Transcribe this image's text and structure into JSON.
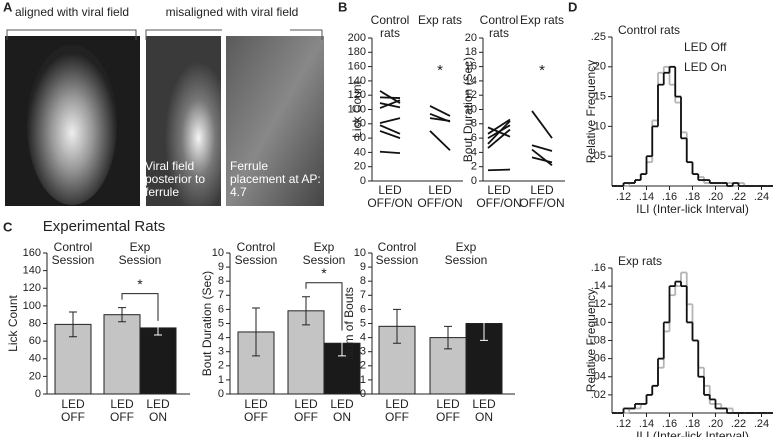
{
  "figure": {
    "panel_labels": [
      "A",
      "B",
      "C",
      "D"
    ],
    "panel_a": {
      "aligned_label": "aligned with viral field",
      "misaligned_label": "misaligned with viral field",
      "image_2_caption": "Viral field posterior to ferrule",
      "image_3_caption": "Ferrule placement at AP: 4.7"
    },
    "panel_c_title": "Experimental Rats"
  },
  "chart_data": [
    {
      "type": "paired",
      "ylabel": "Lick Count",
      "ylim": [
        0,
        200
      ],
      "yticks": [
        0,
        20,
        40,
        60,
        80,
        100,
        120,
        140,
        160,
        180,
        200
      ],
      "color": "#111111",
      "groups": [
        {
          "name": "Control rats",
          "x_label": "LED OFF/ON",
          "pairs": [
            [
              126,
              109
            ],
            [
              117,
              116
            ],
            [
              109,
              103
            ],
            [
              102,
              113
            ],
            [
              81,
              88
            ],
            [
              78,
              66
            ],
            [
              70,
              60
            ],
            [
              41,
              39
            ]
          ]
        },
        {
          "name": "Exp rats",
          "x_label": "LED OFF/ON",
          "annotation": "*",
          "pairs": [
            [
              105,
              91
            ],
            [
              94,
              83
            ],
            [
              88,
              84
            ],
            [
              70,
              43
            ]
          ]
        }
      ]
    },
    {
      "type": "paired",
      "ylabel": "Bout Duration (Sec)",
      "ylim": [
        0,
        20
      ],
      "yticks": [
        0,
        2,
        4,
        6,
        8,
        10,
        12,
        14,
        16,
        18,
        20
      ],
      "color": "#111111",
      "groups": [
        {
          "name": "Control rats",
          "x_label": "LED OFF/ON",
          "pairs": [
            [
              5.2,
              8.4
            ],
            [
              6.0,
              7.8
            ],
            [
              4.6,
              7.2
            ],
            [
              6.6,
              8.6
            ],
            [
              7.5,
              6.2
            ],
            [
              1.5,
              1.6
            ]
          ]
        },
        {
          "name": "Exp rats",
          "x_label": "LED OFF/ON",
          "annotation": "*",
          "pairs": [
            [
              9.8,
              6.0
            ],
            [
              5.0,
              4.2
            ],
            [
              4.4,
              2.2
            ],
            [
              3.3,
              2.6
            ]
          ]
        }
      ]
    },
    {
      "type": "bar",
      "ylabel": "Lick Count",
      "ylim": [
        0,
        160
      ],
      "yticks": [
        0,
        20,
        40,
        60,
        80,
        100,
        120,
        140,
        160
      ],
      "groups": [
        "Control Session",
        "Exp Session"
      ],
      "categories": [
        "LED OFF",
        "LED OFF",
        "LED ON"
      ],
      "values": [
        79,
        90,
        75
      ],
      "errors": [
        14,
        8,
        8
      ],
      "colors": [
        "#c4c4c4",
        "#c4c4c4",
        "#1a1a1a"
      ],
      "annotation": "*"
    },
    {
      "type": "bar",
      "ylabel": "Bout Duration (Sec)",
      "ylim": [
        0,
        10
      ],
      "yticks": [
        0,
        1,
        2,
        3,
        4,
        5,
        6,
        7,
        8,
        9,
        10
      ],
      "groups": [
        "Control Session",
        "Exp Session"
      ],
      "categories": [
        "LED OFF",
        "LED OFF",
        "LED ON"
      ],
      "values": [
        4.4,
        5.9,
        3.6
      ],
      "errors": [
        1.7,
        1.0,
        0.9
      ],
      "colors": [
        "#c4c4c4",
        "#c4c4c4",
        "#1a1a1a"
      ],
      "annotation": "*"
    },
    {
      "type": "bar",
      "ylabel": "Num of Bouts",
      "ylim": [
        0,
        10
      ],
      "yticks": [
        0,
        1,
        2,
        3,
        4,
        5,
        6,
        7,
        8,
        9,
        10
      ],
      "groups": [
        "Control Session",
        "Exp Session"
      ],
      "categories": [
        "LED OFF",
        "LED OFF",
        "LED ON"
      ],
      "values": [
        4.8,
        4.0,
        5.0
      ],
      "errors": [
        1.2,
        0.8,
        1.2
      ],
      "colors": [
        "#c4c4c4",
        "#c4c4c4",
        "#1a1a1a"
      ]
    },
    {
      "type": "histogram",
      "title": "Control rats",
      "xlabel": "ILI (Inter-lick Interval)",
      "ylabel": "Relative Frequency",
      "xlim": [
        0.11,
        0.25
      ],
      "xticks": [
        {
          "value": 0.12,
          "label": ".12"
        },
        {
          "value": 0.14,
          "label": ".14"
        },
        {
          "value": 0.16,
          "label": ".16"
        },
        {
          "value": 0.18,
          "label": ".18"
        },
        {
          "value": 0.2,
          "label": ".20"
        },
        {
          "value": 0.22,
          "label": ".22"
        },
        {
          "value": 0.24,
          "label": ".24"
        }
      ],
      "ylim": [
        0,
        0.25
      ],
      "yticks": [
        {
          "value": 0.05,
          "label": ".05"
        },
        {
          "value": 0.1,
          "label": ".10"
        },
        {
          "value": 0.15,
          "label": ".15"
        },
        {
          "value": 0.2,
          "label": ".20"
        },
        {
          "value": 0.25,
          "label": ".25"
        }
      ],
      "bins": [
        0.11,
        0.115,
        0.12,
        0.125,
        0.13,
        0.135,
        0.14,
        0.145,
        0.15,
        0.155,
        0.16,
        0.165,
        0.17,
        0.175,
        0.18,
        0.185,
        0.19,
        0.195,
        0.2,
        0.205,
        0.21,
        0.215,
        0.22,
        0.225,
        0.23,
        0.235,
        0.24,
        0.245,
        0.25
      ],
      "legend": "top-center",
      "series": [
        {
          "name": "LED Off",
          "color": "#b4b4b4",
          "values": [
            0,
            0,
            0,
            0.005,
            0.01,
            0.02,
            0.04,
            0.11,
            0.19,
            0.2,
            0.17,
            0.14,
            0.09,
            0.04,
            0.02,
            0.015,
            0.005,
            0.005,
            0.005,
            0.005,
            0.005,
            0,
            0.005,
            0,
            0,
            0,
            0,
            0
          ]
        },
        {
          "name": "LED On",
          "color": "#111111",
          "values": [
            0,
            0,
            0.005,
            0.005,
            0.01,
            0.02,
            0.05,
            0.1,
            0.17,
            0.19,
            0.2,
            0.15,
            0.08,
            0.04,
            0.02,
            0.01,
            0.01,
            0.005,
            0.005,
            0.005,
            0,
            0.005,
            0,
            0,
            0,
            0,
            0,
            0
          ]
        }
      ]
    },
    {
      "type": "histogram",
      "title": "Exp rats",
      "xlabel": "ILI (Inter-lick Interval)",
      "ylabel": "Relative Frequency",
      "xlim": [
        0.11,
        0.25
      ],
      "xticks": [
        {
          "value": 0.12,
          "label": ".12"
        },
        {
          "value": 0.14,
          "label": ".14"
        },
        {
          "value": 0.16,
          "label": ".16"
        },
        {
          "value": 0.18,
          "label": ".18"
        },
        {
          "value": 0.2,
          "label": ".20"
        },
        {
          "value": 0.22,
          "label": ".22"
        },
        {
          "value": 0.24,
          "label": ".24"
        }
      ],
      "ylim": [
        0,
        0.16
      ],
      "yticks": [
        {
          "value": 0.02,
          "label": ".02"
        },
        {
          "value": 0.04,
          "label": ".04"
        },
        {
          "value": 0.06,
          "label": ".06"
        },
        {
          "value": 0.08,
          "label": ".08"
        },
        {
          "value": 0.1,
          "label": ".10"
        },
        {
          "value": 0.12,
          "label": ".12"
        },
        {
          "value": 0.14,
          "label": ".14"
        },
        {
          "value": 0.16,
          "label": ".16"
        }
      ],
      "bins": [
        0.11,
        0.115,
        0.12,
        0.125,
        0.13,
        0.135,
        0.14,
        0.145,
        0.15,
        0.155,
        0.16,
        0.165,
        0.17,
        0.175,
        0.18,
        0.185,
        0.19,
        0.195,
        0.2,
        0.205,
        0.21,
        0.215,
        0.22,
        0.225,
        0.23,
        0.235,
        0.24,
        0.245,
        0.25
      ],
      "series": [
        {
          "color": "#b4b4b4",
          "values": [
            0,
            0,
            0,
            0.005,
            0.005,
            0.01,
            0.02,
            0.03,
            0.05,
            0.09,
            0.13,
            0.14,
            0.155,
            0.12,
            0.08,
            0.05,
            0.03,
            0.01,
            0.01,
            0.005,
            0.005,
            0,
            0,
            0,
            0,
            0,
            0,
            0
          ]
        },
        {
          "color": "#111111",
          "values": [
            0,
            0,
            0.005,
            0.005,
            0.01,
            0.01,
            0.02,
            0.03,
            0.06,
            0.1,
            0.14,
            0.145,
            0.14,
            0.1,
            0.08,
            0.04,
            0.02,
            0.015,
            0.005,
            0.005,
            0,
            0,
            0,
            0,
            0,
            0,
            0,
            0
          ]
        }
      ]
    }
  ]
}
